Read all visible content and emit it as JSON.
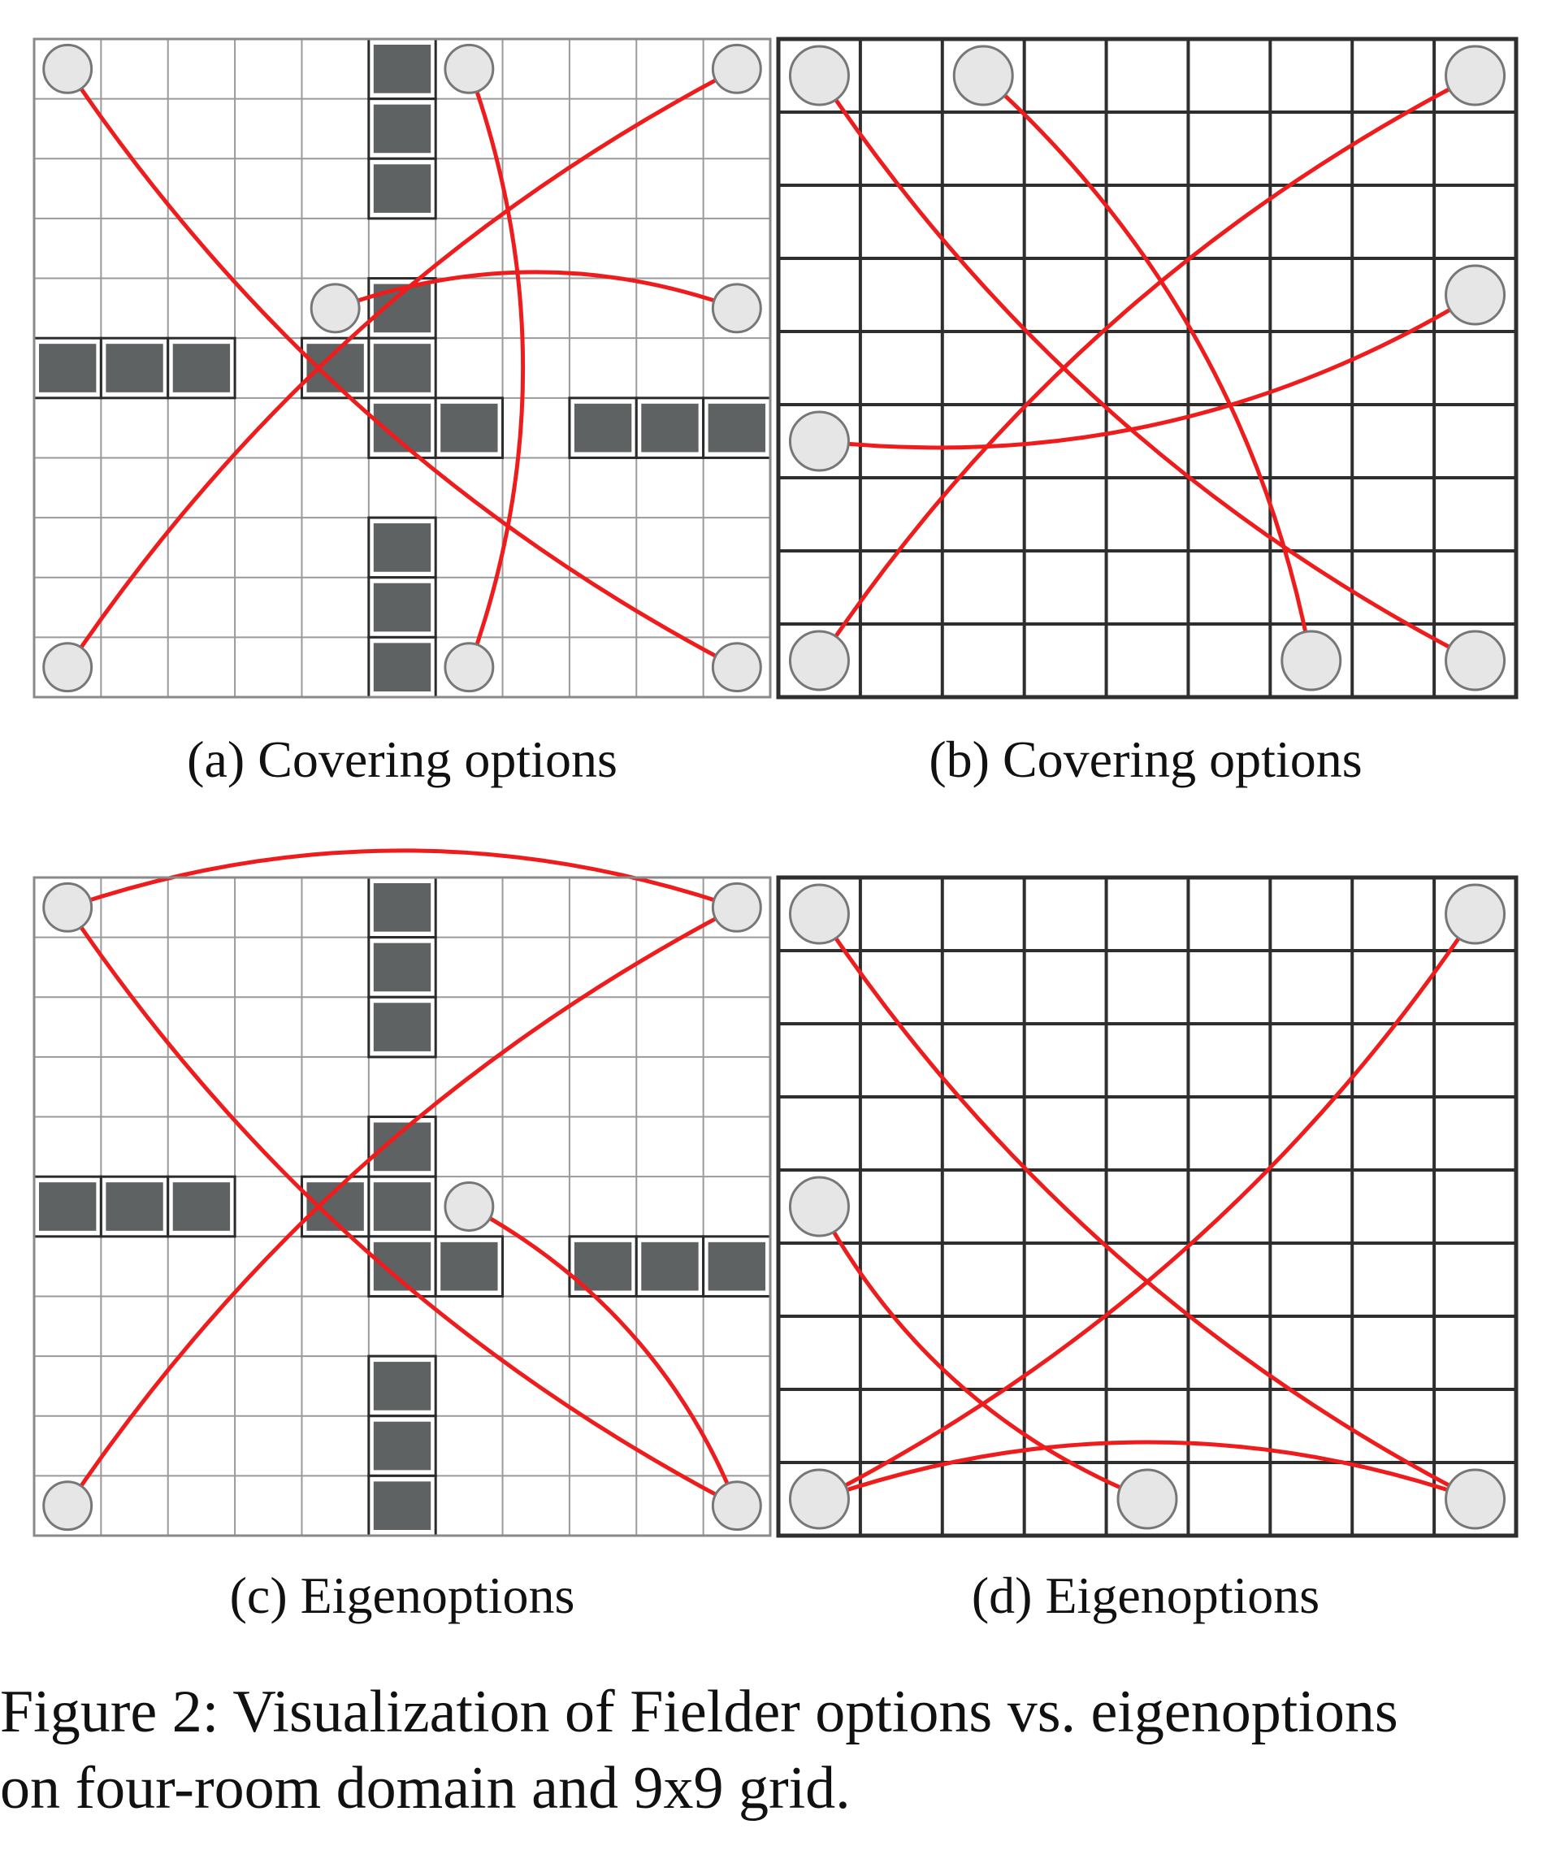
{
  "figure": {
    "caption_line1": "Figure 2: Visualization of Fielder options vs. eigenoptions",
    "caption_line2": "on four-room domain and 9x9 grid."
  },
  "colors": {
    "option_line": "#ee1c1c",
    "wall_fill": "#5f6262",
    "node_fill": "#e6e6e6"
  },
  "panels": [
    {
      "id": "a",
      "label": "(a) Covering options",
      "grid": "four-room",
      "cols": 11,
      "rows": 11,
      "walls": [
        [
          5,
          0
        ],
        [
          5,
          1
        ],
        [
          5,
          2
        ],
        [
          5,
          4
        ],
        [
          5,
          5
        ],
        [
          4,
          5
        ],
        [
          0,
          5
        ],
        [
          1,
          5
        ],
        [
          2,
          5
        ],
        [
          5,
          6
        ],
        [
          6,
          6
        ],
        [
          8,
          6
        ],
        [
          9,
          6
        ],
        [
          10,
          6
        ],
        [
          5,
          8
        ],
        [
          5,
          9
        ],
        [
          5,
          10
        ]
      ],
      "options": [
        {
          "from": [
            0,
            0
          ],
          "to": [
            10,
            10
          ]
        },
        {
          "from": [
            6,
            0
          ],
          "to": [
            6,
            10
          ]
        },
        {
          "from": [
            10,
            0
          ],
          "to": [
            0,
            10
          ]
        },
        {
          "from": [
            4,
            4
          ],
          "to": [
            10,
            4
          ]
        }
      ]
    },
    {
      "id": "b",
      "label": "(b) Covering options",
      "grid": "9x9",
      "cols": 9,
      "rows": 9,
      "walls": [],
      "options": [
        {
          "from": [
            0,
            0
          ],
          "to": [
            8,
            8
          ]
        },
        {
          "from": [
            2,
            0
          ],
          "to": [
            6,
            8
          ]
        },
        {
          "from": [
            8,
            0
          ],
          "to": [
            0,
            8
          ]
        },
        {
          "from": [
            8,
            3
          ],
          "to": [
            0,
            5
          ]
        }
      ]
    },
    {
      "id": "c",
      "label": "(c) Eigenoptions",
      "grid": "four-room",
      "cols": 11,
      "rows": 11,
      "walls": [
        [
          5,
          0
        ],
        [
          5,
          1
        ],
        [
          5,
          2
        ],
        [
          5,
          4
        ],
        [
          5,
          5
        ],
        [
          4,
          5
        ],
        [
          0,
          5
        ],
        [
          1,
          5
        ],
        [
          2,
          5
        ],
        [
          5,
          6
        ],
        [
          6,
          6
        ],
        [
          8,
          6
        ],
        [
          9,
          6
        ],
        [
          10,
          6
        ],
        [
          5,
          8
        ],
        [
          5,
          9
        ],
        [
          5,
          10
        ]
      ],
      "options": [
        {
          "from": [
            0,
            0
          ],
          "to": [
            10,
            10
          ]
        },
        {
          "from": [
            0,
            0
          ],
          "to": [
            10,
            0
          ]
        },
        {
          "from": [
            10,
            0
          ],
          "to": [
            0,
            10
          ]
        },
        {
          "from": [
            6,
            5
          ],
          "to": [
            10,
            10
          ]
        }
      ]
    },
    {
      "id": "d",
      "label": "(d) Eigenoptions",
      "grid": "9x9",
      "cols": 9,
      "rows": 9,
      "walls": [],
      "options": [
        {
          "from": [
            0,
            0
          ],
          "to": [
            8,
            8
          ]
        },
        {
          "from": [
            8,
            0
          ],
          "to": [
            0,
            8
          ]
        },
        {
          "from": [
            0,
            4
          ],
          "to": [
            4,
            8
          ]
        },
        {
          "from": [
            0,
            8
          ],
          "to": [
            8,
            8
          ]
        }
      ]
    }
  ]
}
